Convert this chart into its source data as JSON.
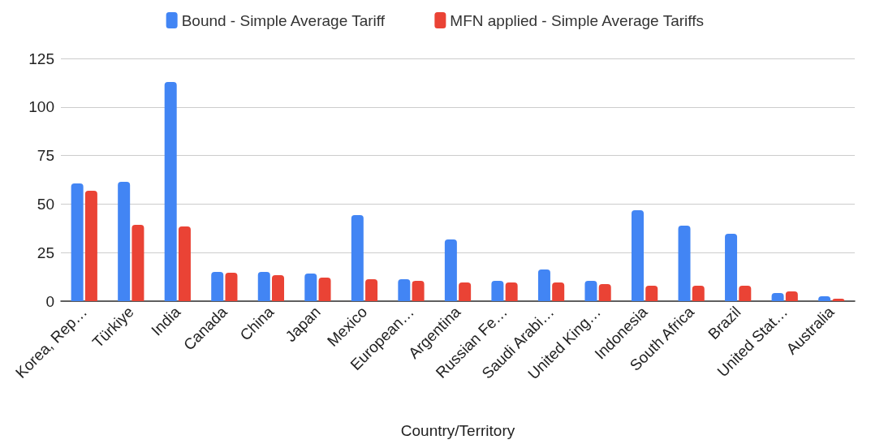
{
  "chart_data": {
    "type": "bar",
    "xlabel": "Country/Territory",
    "categories": [
      "Korea, Rep…",
      "Türkiye",
      "India",
      "Canada",
      "China",
      "Japan",
      "Mexico",
      "European…",
      "Argentina",
      "Russian Fe…",
      "Saudi Arabi…",
      "United King…",
      "Indonesia",
      "South Africa",
      "Brazil",
      "United Stat…",
      "Australia"
    ],
    "series": [
      {
        "name": "Bound - Simple Average Tariff",
        "color": "#4285f4",
        "values": [
          60.6,
          61.5,
          112.9,
          15,
          15,
          14.2,
          44.3,
          11.3,
          31.8,
          10.5,
          16.3,
          10.5,
          46.8,
          38.9,
          34.7,
          4.2,
          2.5
        ]
      },
      {
        "name": "MFN applied - Simple Average Tariffs",
        "color": "#ea4335",
        "values": [
          56.9,
          39.3,
          38.5,
          14.6,
          13.4,
          12.1,
          11.3,
          10.5,
          9.6,
          9.6,
          9.6,
          8.8,
          7.9,
          7.9,
          7.9,
          5,
          1.3
        ]
      }
    ],
    "ylim": [
      0,
      125
    ],
    "yticks": [
      0,
      25,
      50,
      75,
      100,
      125
    ],
    "grid": "y",
    "legend": "top"
  }
}
